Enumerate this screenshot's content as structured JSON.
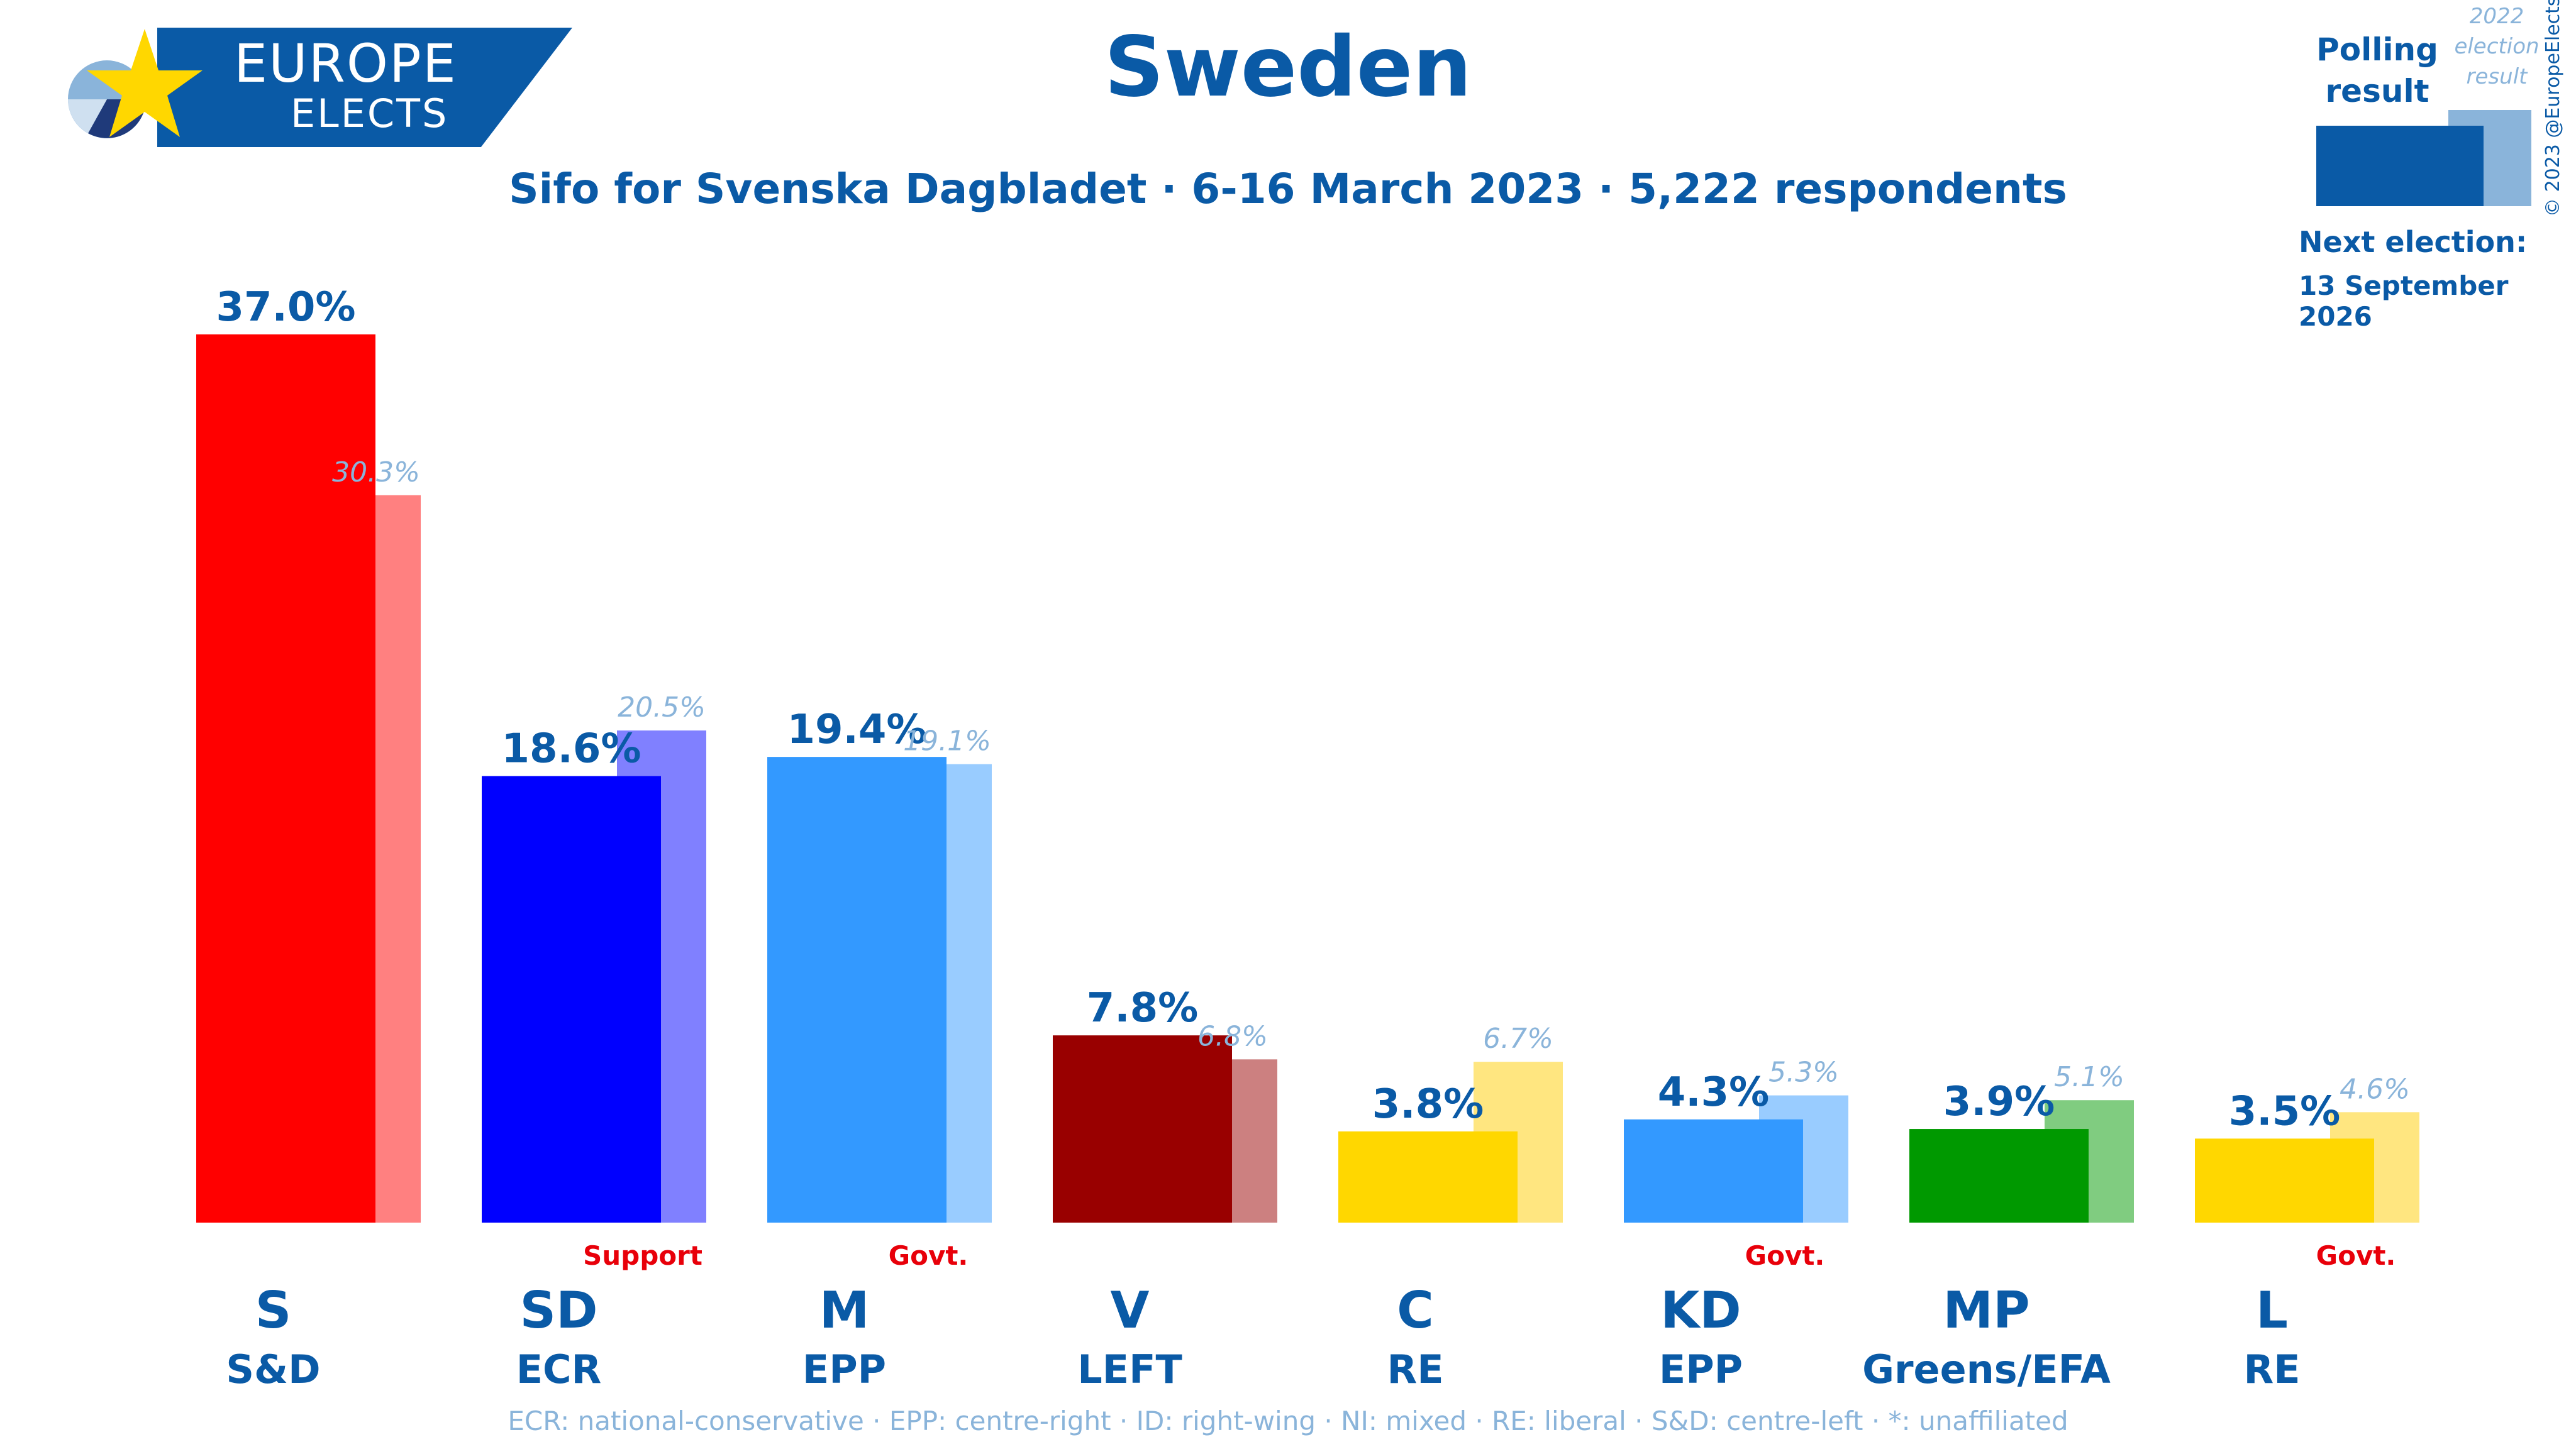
{
  "header": {
    "title": "Sweden",
    "subtitle": "Sifo for Svenska Dagbladet · 6-16 March 2023 · 5,222 respondents"
  },
  "logo": {
    "word1": "EUROPE",
    "word2": "ELECTS",
    "icon": "europe-elects-star-pie-icon"
  },
  "legend": {
    "polling": "Polling result",
    "election": "2022 election result",
    "next_election_label": "Next election:",
    "next_election_date": "13 September 2026"
  },
  "copyright": "© 2023 @EuropeElects",
  "footnote": "ECR: national-conservative · EPP: centre-right · ID: right-wing · NI: mixed · RE: liberal · S&D: centre-left · *: unaffiliated",
  "colors": {
    "text": "#0a5aa6",
    "election_label": "#8ab4da",
    "role_label": "#e8000a"
  },
  "chart_data": {
    "type": "bar",
    "title": "Sweden",
    "ylim": [
      0,
      37
    ],
    "grid": false,
    "categories": [
      "S",
      "SD",
      "M",
      "V",
      "C",
      "KD",
      "MP",
      "L"
    ],
    "groups": [
      "S&D",
      "ECR",
      "EPP",
      "LEFT",
      "RE",
      "EPP",
      "Greens/EFA",
      "RE"
    ],
    "roles": [
      "",
      "Support",
      "Govt.",
      "",
      "",
      "Govt.",
      "",
      "Govt."
    ],
    "series": [
      {
        "name": "Polling result",
        "values": [
          37.0,
          18.6,
          19.4,
          7.8,
          3.8,
          4.3,
          3.9,
          3.5
        ],
        "labels": [
          "37.0%",
          "18.6%",
          "19.4%",
          "7.8%",
          "3.8%",
          "4.3%",
          "3.9%",
          "3.5%"
        ],
        "colors": [
          "#ff0000",
          "#0000ff",
          "#3399ff",
          "#990000",
          "#ffd700",
          "#3399ff",
          "#009900",
          "#ffd700"
        ]
      },
      {
        "name": "2022 election result",
        "values": [
          30.3,
          20.5,
          19.1,
          6.8,
          6.7,
          5.3,
          5.1,
          4.6
        ],
        "labels": [
          "30.3%",
          "20.5%",
          "19.1%",
          "6.8%",
          "6.7%",
          "5.3%",
          "5.1%",
          "4.6%"
        ],
        "colors": [
          "#ff8080",
          "#8080ff",
          "#99ccff",
          "#cc8080",
          "#ffe680",
          "#99ccff",
          "#80cc80",
          "#ffe680"
        ]
      }
    ]
  }
}
